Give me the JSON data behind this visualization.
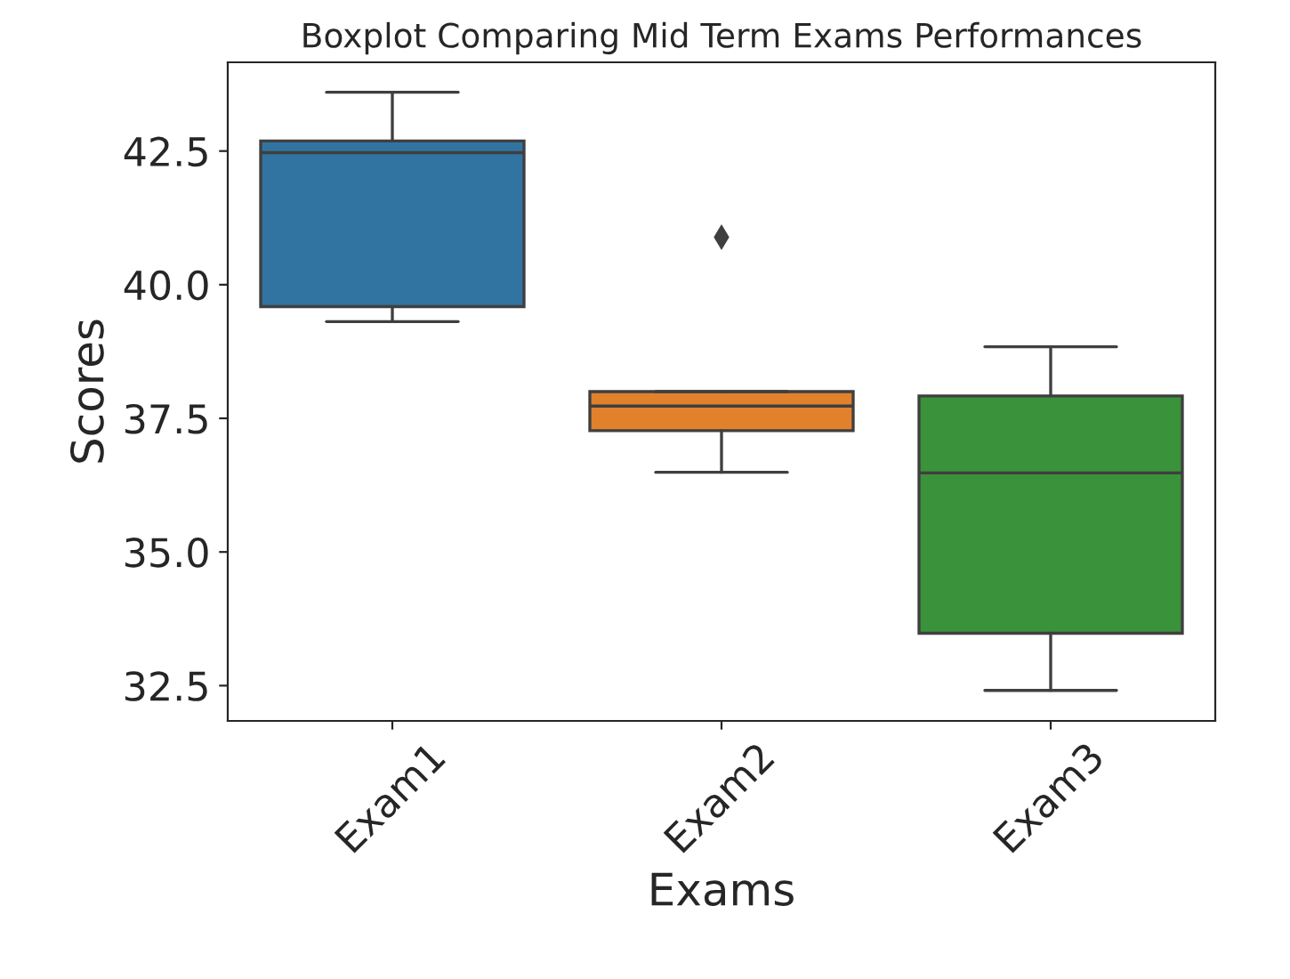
{
  "chart_data": {
    "type": "box",
    "title": "Boxplot Comparing Mid Term Exams Performances",
    "xlabel": "Exams",
    "ylabel": "Scores",
    "categories": [
      "Exam1",
      "Exam2",
      "Exam3"
    ],
    "colors": [
      "#3274a1",
      "#e1812c",
      "#3a923a"
    ],
    "boxes": [
      {
        "low": 39.31,
        "q1": 39.59,
        "median": 42.47,
        "q3": 42.69,
        "high": 43.6
      },
      {
        "low": 36.49,
        "q1": 37.27,
        "median": 37.73,
        "q3": 38.0,
        "high": 38.0,
        "outliers": [
          40.89
        ]
      },
      {
        "low": 32.41,
        "q1": 33.48,
        "median": 36.48,
        "q3": 37.92,
        "high": 38.84
      }
    ],
    "ylim": [
      31.84,
      44.16
    ],
    "yticks": [
      32.5,
      {
        "value": 35,
        "label": "35.0"
      },
      37.5,
      {
        "value": 40,
        "label": "40.0"
      },
      42.5
    ],
    "marker": "diamond",
    "grid": false
  }
}
